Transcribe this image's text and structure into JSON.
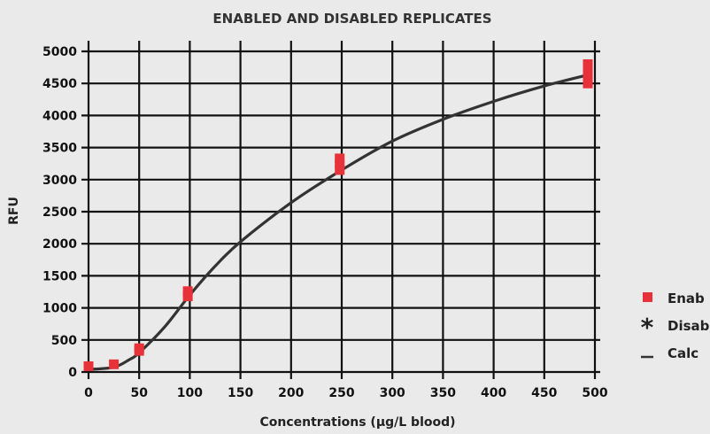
{
  "chart_data": {
    "type": "scatter",
    "title": "ENABLED AND DISABLED REPLICATES",
    "xlabel": "Concentrations (µg/L blood)",
    "ylabel": "RFU",
    "xlim": [
      0,
      500
    ],
    "ylim": [
      0,
      5000
    ],
    "x_ticks": [
      "0",
      "50",
      "100",
      "150",
      "200",
      "250",
      "300",
      "350",
      "400",
      "450",
      "500"
    ],
    "y_ticks": [
      "0",
      "500",
      "1000",
      "1500",
      "2000",
      "2500",
      "3000",
      "3500",
      "4000",
      "4500",
      "5000"
    ],
    "grid": true,
    "legend_position": "right",
    "colors": {
      "enabled": "#e8323a",
      "curve": "#333333",
      "grid": "#111111"
    },
    "legend": [
      {
        "marker": "■",
        "label": "Enab"
      },
      {
        "marker": "*",
        "label": "Disab"
      },
      {
        "marker": "—",
        "label": "Calc"
      }
    ],
    "series": [
      {
        "name": "Enab",
        "kind": "points",
        "points": [
          {
            "x": 0,
            "y": 90
          },
          {
            "x": 25,
            "y": 120
          },
          {
            "x": 50,
            "y": 330
          },
          {
            "x": 50,
            "y": 370
          },
          {
            "x": 98,
            "y": 1180
          },
          {
            "x": 98,
            "y": 1260
          },
          {
            "x": 248,
            "y": 3150
          },
          {
            "x": 248,
            "y": 3250
          },
          {
            "x": 248,
            "y": 3330
          },
          {
            "x": 493,
            "y": 4500
          },
          {
            "x": 493,
            "y": 4600
          },
          {
            "x": 493,
            "y": 4700
          },
          {
            "x": 493,
            "y": 4800
          }
        ]
      },
      {
        "name": "Calc",
        "kind": "curve",
        "points": [
          {
            "x": 0,
            "y": 40
          },
          {
            "x": 25,
            "y": 75
          },
          {
            "x": 40,
            "y": 190
          },
          {
            "x": 50,
            "y": 300
          },
          {
            "x": 75,
            "y": 700
          },
          {
            "x": 100,
            "y": 1200
          },
          {
            "x": 125,
            "y": 1650
          },
          {
            "x": 150,
            "y": 2030
          },
          {
            "x": 200,
            "y": 2640
          },
          {
            "x": 250,
            "y": 3150
          },
          {
            "x": 300,
            "y": 3600
          },
          {
            "x": 350,
            "y": 3940
          },
          {
            "x": 400,
            "y": 4220
          },
          {
            "x": 450,
            "y": 4460
          },
          {
            "x": 495,
            "y": 4640
          }
        ]
      }
    ]
  }
}
